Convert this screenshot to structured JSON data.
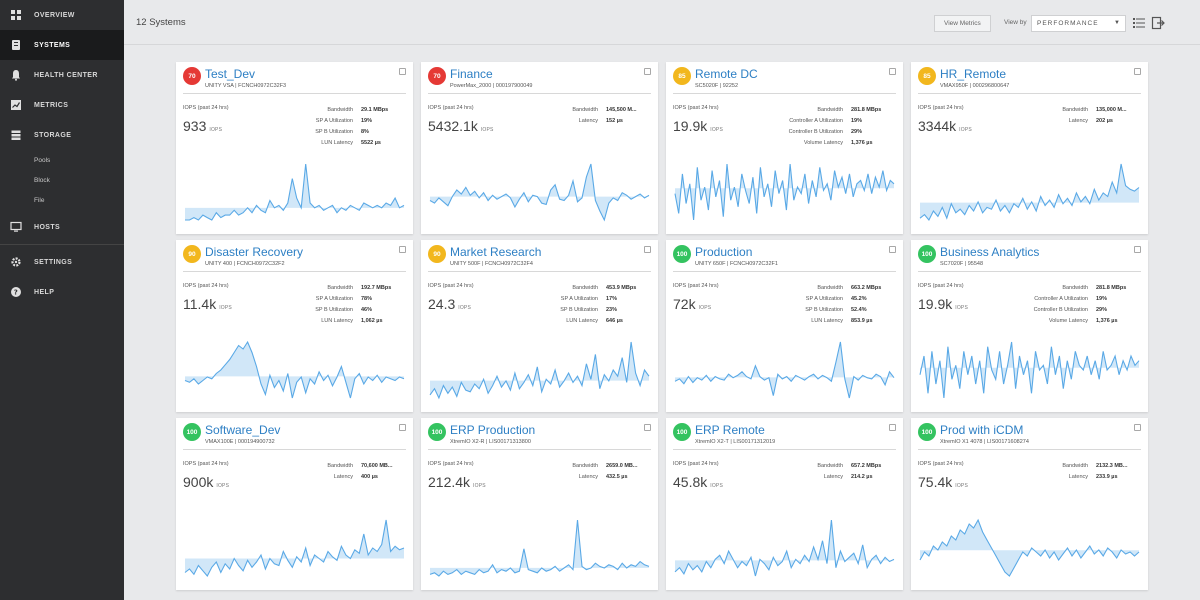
{
  "sidebar": {
    "items": [
      {
        "label": "OVERVIEW",
        "icon": "dashboard-icon"
      },
      {
        "label": "SYSTEMS",
        "icon": "systems-icon",
        "active": true
      },
      {
        "label": "HEALTH CENTER",
        "icon": "bell-icon"
      },
      {
        "label": "METRICS",
        "icon": "chart-icon"
      },
      {
        "label": "STORAGE",
        "icon": "storage-icon"
      }
    ],
    "storage_sub": [
      "Pools",
      "Block",
      "File"
    ],
    "hosts": {
      "label": "HOSTS",
      "icon": "monitor-icon"
    },
    "settings": {
      "label": "SETTINGS",
      "icon": "gear-icon"
    },
    "help": {
      "label": "HELP",
      "icon": "help-icon"
    }
  },
  "header": {
    "count_label": "12 Systems",
    "view_metrics": "View Metrics",
    "view_by_label": "View by",
    "view_by_value": "PERFORMANCE"
  },
  "colors": {
    "critical": "#e53935",
    "warning": "#f2b71d",
    "healthy": "#34c360",
    "link": "#2d7fc4",
    "spark": "#5aa9e6"
  },
  "cards": [
    {
      "score": "70",
      "status": "critical",
      "name": "Test_Dev",
      "sub": "UNITY VSA | FCNCH0972C32F3",
      "iops_label": "IOPS (past 24 hrs)",
      "iops": "933",
      "unit": "IOPS",
      "metrics": [
        {
          "k": "Bandwidth",
          "v": "29.1 MBps"
        },
        {
          "k": "SP A Utilization",
          "v": "19%"
        },
        {
          "k": "SP B Utilization",
          "v": "8%"
        },
        {
          "k": "LUN Latency",
          "v": "5522 µs"
        }
      ],
      "spark": [
        3,
        3,
        4,
        3,
        5,
        4,
        3,
        6,
        4,
        5,
        5,
        7,
        5,
        6,
        8,
        6,
        9,
        7,
        6,
        11,
        8,
        9,
        7,
        10,
        20,
        12,
        8,
        26,
        10,
        8,
        9,
        7,
        8,
        9,
        6,
        8,
        7,
        9,
        8,
        7,
        10,
        9,
        8,
        9,
        8,
        10,
        9,
        12,
        8,
        9
      ]
    },
    {
      "score": "70",
      "status": "critical",
      "name": "Finance",
      "sub": "PowerMax_2000 | 000197900049",
      "iops_label": "IOPS (past 24 hrs)",
      "iops": "5432.1k",
      "unit": "IOPS",
      "metrics": [
        {
          "k": "Bandwidth",
          "v": "145,500 M..."
        },
        {
          "k": "Latency",
          "v": "152 µs"
        }
      ],
      "spark": [
        20,
        18,
        22,
        19,
        16,
        23,
        28,
        25,
        30,
        24,
        27,
        22,
        26,
        20,
        24,
        21,
        23,
        25,
        22,
        15,
        21,
        26,
        19,
        24,
        23,
        18,
        17,
        28,
        32,
        21,
        20,
        24,
        35,
        19,
        22,
        38,
        48,
        20,
        12,
        5,
        18,
        22,
        20,
        26,
        24,
        21,
        23,
        25,
        22,
        24
      ]
    },
    {
      "score": "85",
      "status": "warning",
      "name": "Remote DC",
      "sub": "SC5020F | 92252",
      "iops_label": "IOPS (past 24 hrs)",
      "iops": "19.9k",
      "unit": "IOPS",
      "metrics": [
        {
          "k": "Bandwidth",
          "v": "281.8 MBps"
        },
        {
          "k": "Controller A Utilization",
          "v": "19%"
        },
        {
          "k": "Controller B Utilization",
          "v": "29%"
        },
        {
          "k": "Volume Latency",
          "v": "1,376 µs"
        }
      ],
      "spark": [
        20,
        14,
        26,
        17,
        23,
        12,
        28,
        18,
        22,
        15,
        27,
        19,
        24,
        13,
        29,
        18,
        22,
        16,
        26,
        21,
        17,
        25,
        14,
        28,
        19,
        23,
        16,
        27,
        20,
        24,
        15,
        29,
        18,
        22,
        20,
        26,
        17,
        24,
        19,
        28,
        21,
        23,
        18,
        27,
        22,
        25,
        20,
        26,
        19,
        23,
        24,
        21,
        26,
        20,
        25,
        22,
        27,
        21,
        24,
        23
      ]
    },
    {
      "score": "85",
      "status": "warning",
      "name": "HR_Remote",
      "sub": "VMAX950F | 000296800647",
      "iops_label": "IOPS (past 24 hrs)",
      "iops": "3344k",
      "unit": "IOPS",
      "metrics": [
        {
          "k": "Bandwidth",
          "v": "135,000 M..."
        },
        {
          "k": "Latency",
          "v": "202 µs"
        }
      ],
      "spark": [
        6,
        8,
        5,
        10,
        7,
        12,
        6,
        14,
        9,
        11,
        8,
        13,
        10,
        15,
        9,
        12,
        11,
        16,
        10,
        13,
        9,
        14,
        12,
        17,
        11,
        15,
        10,
        18,
        13,
        16,
        12,
        19,
        14,
        17,
        13,
        20,
        15,
        18,
        14,
        22,
        16,
        20,
        18,
        26,
        20,
        36,
        24,
        22,
        21,
        23
      ]
    },
    {
      "score": "90",
      "status": "warning",
      "name": "Disaster Recovery",
      "sub": "UNITY 400 | FCNCH0972C32F2",
      "iops_label": "IOPS (past 24 hrs)",
      "iops": "11.4k",
      "unit": "IOPS",
      "metrics": [
        {
          "k": "Bandwidth",
          "v": "192.7 MBps"
        },
        {
          "k": "SP A Utilization",
          "v": "78%"
        },
        {
          "k": "SP B Utilization",
          "v": "46%"
        },
        {
          "k": "LUN Latency",
          "v": "1,062 µs"
        }
      ],
      "spark": [
        22,
        21,
        23,
        20,
        22,
        24,
        23,
        26,
        28,
        31,
        34,
        38,
        42,
        40,
        44,
        38,
        30,
        20,
        14,
        25,
        18,
        22,
        16,
        26,
        12,
        21,
        24,
        15,
        23,
        20,
        27,
        22,
        25,
        19,
        24,
        30,
        21,
        12,
        23,
        26,
        20,
        24,
        22,
        25,
        21,
        24,
        23,
        22,
        24,
        23
      ]
    },
    {
      "score": "90",
      "status": "warning",
      "name": "Market Research",
      "sub": "UNITY 500F | FCNCH0972C32F4",
      "iops_label": "IOPS (past 24 hrs)",
      "iops": "24.3",
      "unit": "IOPS",
      "metrics": [
        {
          "k": "Bandwidth",
          "v": "453.9 MBps"
        },
        {
          "k": "SP A Utilization",
          "v": "17%"
        },
        {
          "k": "SP B Utilization",
          "v": "23%"
        },
        {
          "k": "LUN Latency",
          "v": "646 µs"
        }
      ],
      "spark": [
        14,
        18,
        12,
        20,
        15,
        19,
        13,
        22,
        17,
        16,
        21,
        18,
        24,
        15,
        20,
        26,
        19,
        23,
        17,
        28,
        18,
        22,
        27,
        20,
        32,
        16,
        24,
        21,
        30,
        19,
        23,
        28,
        22,
        26,
        20,
        34,
        24,
        40,
        18,
        27,
        23,
        30,
        26,
        38,
        22,
        48,
        28,
        20,
        30,
        26
      ]
    },
    {
      "score": "100",
      "status": "healthy",
      "name": "Production",
      "sub": "UNITY 650F | FCNCH0972C32F1",
      "iops_label": "IOPS (past 24 hrs)",
      "iops": "72k",
      "unit": "IOPS",
      "metrics": [
        {
          "k": "Bandwidth",
          "v": "663.2 MBps"
        },
        {
          "k": "SP A Utilization",
          "v": "45.2%"
        },
        {
          "k": "SP B Utilization",
          "v": "52.4%"
        },
        {
          "k": "LUN Latency",
          "v": "853.9 µs"
        }
      ],
      "spark": [
        22,
        24,
        20,
        26,
        21,
        25,
        23,
        27,
        22,
        26,
        24,
        23,
        28,
        25,
        27,
        30,
        26,
        24,
        35,
        26,
        23,
        25,
        10,
        28,
        24,
        26,
        22,
        27,
        25,
        23,
        26,
        28,
        24,
        27,
        25,
        22,
        38,
        55,
        24,
        8,
        26,
        23,
        27,
        25,
        24,
        28,
        26,
        19,
        30,
        25
      ]
    },
    {
      "score": "100",
      "status": "healthy",
      "name": "Business Analytics",
      "sub": "SC7020F | 95548",
      "iops_label": "IOPS (past 24 hrs)",
      "iops": "19.9k",
      "unit": "IOPS",
      "metrics": [
        {
          "k": "Bandwidth",
          "v": "281.8 MBps"
        },
        {
          "k": "Controller A Utilization",
          "v": "19%"
        },
        {
          "k": "Controller B Utilization",
          "v": "29%"
        },
        {
          "k": "Volume Latency",
          "v": "1,376 µs"
        }
      ],
      "spark": [
        20,
        24,
        16,
        25,
        18,
        23,
        15,
        26,
        19,
        22,
        17,
        25,
        20,
        24,
        18,
        23,
        16,
        26,
        21,
        19,
        25,
        18,
        22,
        27,
        17,
        24,
        20,
        23,
        16,
        25,
        21,
        22,
        18,
        26,
        20,
        24,
        17,
        23,
        19,
        25,
        22,
        21,
        24,
        20,
        23,
        19,
        25,
        21,
        22,
        24,
        20,
        23,
        21,
        24,
        22,
        23
      ]
    },
    {
      "score": "100",
      "status": "healthy",
      "name": "Software_Dev",
      "sub": "VMAX100E | 000194900732",
      "iops_label": "IOPS (past 24 hrs)",
      "iops": "900k",
      "unit": "IOPS",
      "metrics": [
        {
          "k": "Bandwidth",
          "v": "70,600 MB..."
        },
        {
          "k": "Latency",
          "v": "400 µs"
        }
      ],
      "spark": [
        18,
        20,
        17,
        22,
        19,
        16,
        21,
        24,
        18,
        23,
        20,
        26,
        22,
        19,
        25,
        21,
        24,
        28,
        20,
        26,
        23,
        22,
        30,
        25,
        21,
        27,
        24,
        32,
        22,
        28,
        26,
        24,
        30,
        27,
        25,
        33,
        28,
        26,
        31,
        29,
        40,
        28,
        32,
        30,
        34,
        48,
        30,
        33,
        31,
        32
      ]
    },
    {
      "score": "100",
      "status": "healthy",
      "name": "ERP Production",
      "sub": "XtremIO X2-R | LIS00171313800",
      "iops_label": "IOPS (past 24 hrs)",
      "iops": "212.4k",
      "unit": "IOPS",
      "metrics": [
        {
          "k": "Bandwidth",
          "v": "2659.0 MB..."
        },
        {
          "k": "Latency",
          "v": "432.5 µs"
        }
      ],
      "spark": [
        6,
        7,
        5,
        8,
        6,
        7,
        9,
        6,
        8,
        7,
        6,
        9,
        7,
        8,
        12,
        7,
        9,
        8,
        10,
        7,
        8,
        22,
        9,
        8,
        7,
        10,
        8,
        9,
        11,
        8,
        10,
        12,
        9,
        40,
        11,
        9,
        10,
        13,
        11,
        10,
        12,
        11,
        9,
        13,
        10,
        12,
        11,
        14,
        12,
        11
      ]
    },
    {
      "score": "100",
      "status": "healthy",
      "name": "ERP Remote",
      "sub": "XtremIO X2-T | LIS00171312019",
      "iops_label": "IOPS (past 24 hrs)",
      "iops": "45.8k",
      "unit": "IOPS",
      "metrics": [
        {
          "k": "Bandwidth",
          "v": "657.2 MBps"
        },
        {
          "k": "Latency",
          "v": "214.2 µs"
        }
      ],
      "spark": [
        20,
        22,
        19,
        24,
        21,
        23,
        20,
        25,
        22,
        26,
        28,
        24,
        30,
        26,
        22,
        25,
        23,
        27,
        18,
        26,
        24,
        21,
        27,
        23,
        25,
        30,
        22,
        26,
        24,
        28,
        25,
        32,
        26,
        35,
        24,
        45,
        22,
        30,
        25,
        27,
        29,
        24,
        33,
        22,
        26,
        28,
        24,
        27,
        25,
        26
      ]
    },
    {
      "score": "100",
      "status": "healthy",
      "name": "Prod with iCDM",
      "sub": "XtremIO X1 4078 | LIS00171608274",
      "iops_label": "IOPS (past 24 hrs)",
      "iops": "75.4k",
      "unit": "IOPS",
      "metrics": [
        {
          "k": "Bandwidth",
          "v": "2132.3 MB..."
        },
        {
          "k": "Latency",
          "v": "233.9 µs"
        }
      ],
      "spark": [
        20,
        24,
        22,
        27,
        25,
        29,
        27,
        32,
        30,
        35,
        33,
        38,
        36,
        40,
        34,
        30,
        26,
        22,
        18,
        14,
        12,
        16,
        20,
        24,
        22,
        26,
        24,
        22,
        25,
        21,
        24,
        20,
        23,
        26,
        22,
        25,
        21,
        24,
        27,
        23,
        25,
        22,
        26,
        24,
        21,
        25,
        23,
        24,
        22,
        24
      ]
    }
  ]
}
